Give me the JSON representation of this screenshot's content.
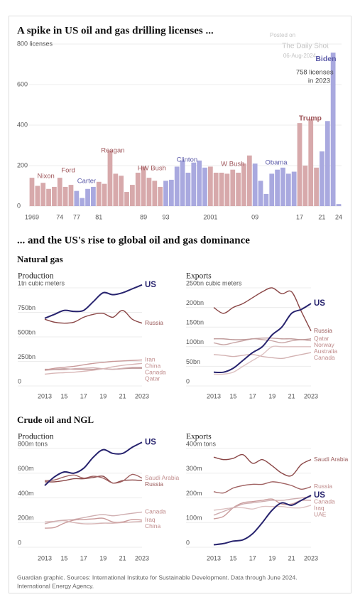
{
  "chart_data": [
    {
      "type": "bar",
      "title": "A spike in US oil and gas drilling licenses ...",
      "watermark": [
        "Posted on",
        "The Daily Shot",
        "06-Aug-2024"
      ],
      "x": [
        1969,
        1970,
        1971,
        1972,
        1973,
        1974,
        1975,
        1976,
        1977,
        1978,
        1979,
        1980,
        1981,
        1982,
        1983,
        1984,
        1985,
        1986,
        1987,
        1988,
        1989,
        1990,
        1991,
        1992,
        1993,
        1994,
        1995,
        1996,
        1997,
        1998,
        1999,
        2000,
        2001,
        2002,
        2003,
        2004,
        2005,
        2006,
        2007,
        2008,
        2009,
        2010,
        2011,
        2012,
        2013,
        2014,
        2015,
        2016,
        2017,
        2018,
        2019,
        2020,
        2021,
        2022,
        2023,
        2024
      ],
      "values": [
        140,
        100,
        115,
        85,
        95,
        140,
        95,
        105,
        75,
        40,
        85,
        95,
        120,
        110,
        275,
        160,
        150,
        70,
        105,
        165,
        195,
        140,
        125,
        95,
        125,
        130,
        195,
        225,
        165,
        215,
        225,
        190,
        195,
        165,
        165,
        160,
        180,
        165,
        210,
        250,
        210,
        125,
        60,
        160,
        180,
        190,
        160,
        170,
        410,
        200,
        430,
        190,
        270,
        420,
        758,
        10
      ],
      "colors": [
        "#d7a9ab",
        "#d7a9ab",
        "#d7a9ab",
        "#d7a9ab",
        "#d7a9ab",
        "#d7a9ab",
        "#d7a9ab",
        "#d7a9ab",
        "#a9a9df",
        "#a9a9df",
        "#a9a9df",
        "#a9a9df",
        "#d7a9ab",
        "#d7a9ab",
        "#d7a9ab",
        "#d7a9ab",
        "#d7a9ab",
        "#d7a9ab",
        "#d7a9ab",
        "#d7a9ab",
        "#d7a9ab",
        "#d7a9ab",
        "#d7a9ab",
        "#d7a9ab",
        "#a9a9df",
        "#a9a9df",
        "#a9a9df",
        "#a9a9df",
        "#a9a9df",
        "#a9a9df",
        "#a9a9df",
        "#a9a9df",
        "#d7a9ab",
        "#d7a9ab",
        "#d7a9ab",
        "#d7a9ab",
        "#d7a9ab",
        "#d7a9ab",
        "#d7a9ab",
        "#d7a9ab",
        "#a9a9df",
        "#a9a9df",
        "#a9a9df",
        "#a9a9df",
        "#a9a9df",
        "#a9a9df",
        "#a9a9df",
        "#a9a9df",
        "#d7a9ab",
        "#d7a9ab",
        "#d7a9ab",
        "#d7a9ab",
        "#a9a9df",
        "#a9a9df",
        "#a9a9df",
        "#a9a9df"
      ],
      "xlim": [
        1969,
        2024
      ],
      "xticks": [
        1969,
        {
          "value": 1974,
          "label": "74"
        },
        {
          "value": 1977,
          "label": "77"
        },
        {
          "value": 1981,
          "label": "81"
        },
        {
          "value": 1989,
          "label": "89"
        },
        {
          "value": 1993,
          "label": "93"
        },
        2001,
        {
          "value": 2009,
          "label": "09"
        },
        {
          "value": 2017,
          "label": "17"
        },
        {
          "value": 2021,
          "label": "21"
        },
        {
          "value": 2024,
          "label": "24"
        }
      ],
      "ylim": [
        0,
        800
      ],
      "yticks": [
        0,
        200,
        400,
        600,
        {
          "value": 800,
          "label": "800 licenses"
        }
      ],
      "grid": true,
      "annotations": [
        {
          "text": "Nixon",
          "x": 1971.5,
          "y": 147,
          "color": "#a0585c"
        },
        {
          "text": "Ford",
          "x": 1975.5,
          "y": 175,
          "color": "#a0585c"
        },
        {
          "text": "Carter",
          "x": 1978.8,
          "y": 122,
          "color": "#5b5aa8"
        },
        {
          "text": "Reagan",
          "x": 1983.5,
          "y": 274,
          "color": "#a0585c"
        },
        {
          "text": "HW Bush",
          "x": 1990.5,
          "y": 186,
          "color": "#a0585c"
        },
        {
          "text": "Clinton",
          "x": 1996.8,
          "y": 228,
          "color": "#5b5aa8"
        },
        {
          "text": "W Bush",
          "x": 2005,
          "y": 207,
          "color": "#a0585c"
        },
        {
          "text": "Obama",
          "x": 2012.8,
          "y": 214,
          "color": "#5b5aa8"
        },
        {
          "text": "Trump",
          "x": 2018.9,
          "y": 432,
          "color": "#a0585c",
          "bold": true
        },
        {
          "text": "Biden",
          "x": 2021.7,
          "y": 725,
          "color": "#5b5aa8",
          "bold": true
        },
        {
          "text": "758 licenses",
          "x": 2019.7,
          "y": 660,
          "color": "#444"
        },
        {
          "text": "in 2023",
          "x": 2020.5,
          "y": 618,
          "color": "#444"
        }
      ]
    },
    {
      "type": "line",
      "title": "Production",
      "x": [
        2013,
        2014,
        2015,
        2016,
        2017,
        2018,
        2019,
        2020,
        2021,
        2022,
        2023
      ],
      "xlim": [
        2013,
        2023
      ],
      "xticks": [
        2013,
        {
          "value": 2015,
          "label": "15"
        },
        {
          "value": 2017,
          "label": "17"
        },
        {
          "value": 2019,
          "label": "19"
        },
        {
          "value": 2021,
          "label": "21"
        },
        2023
      ],
      "ylim": [
        0,
        1000
      ],
      "yticks": [
        0,
        {
          "value": 250,
          "label": "250bn"
        },
        {
          "value": 500,
          "label": "500bn"
        },
        {
          "value": 750,
          "label": "750bn"
        },
        {
          "value": 1000,
          "label": "1tn cubic meters"
        }
      ],
      "grid": true,
      "series": [
        {
          "name": "US",
          "color": "#27236e",
          "values": [
            690,
            730,
            770,
            760,
            770,
            860,
            950,
            930,
            950,
            990,
            1030
          ]
        },
        {
          "name": "Russia",
          "color": "#8a4646",
          "values": [
            680,
            650,
            640,
            650,
            700,
            730,
            740,
            700,
            770,
            680,
            640
          ]
        },
        {
          "name": "Iran",
          "color": "#c99a9a",
          "values": [
            160,
            180,
            190,
            200,
            215,
            230,
            240,
            250,
            255,
            260,
            265
          ]
        },
        {
          "name": "China",
          "color": "#d8b6b6",
          "values": [
            120,
            130,
            135,
            140,
            150,
            160,
            175,
            195,
            210,
            220,
            230
          ]
        },
        {
          "name": "Canada",
          "color": "#cfaeb0",
          "values": [
            160,
            165,
            165,
            175,
            180,
            185,
            175,
            170,
            180,
            190,
            190
          ]
        },
        {
          "name": "Qatar",
          "color": "#bf9a9a",
          "values": [
            170,
            170,
            175,
            170,
            170,
            170,
            175,
            170,
            175,
            180,
            180
          ]
        }
      ]
    },
    {
      "type": "line",
      "title": "Exports",
      "x": [
        2013,
        2014,
        2015,
        2016,
        2017,
        2018,
        2019,
        2020,
        2021,
        2022,
        2023
      ],
      "xlim": [
        2013,
        2023
      ],
      "xticks": [
        2013,
        {
          "value": 2015,
          "label": "15"
        },
        {
          "value": 2017,
          "label": "17"
        },
        {
          "value": 2019,
          "label": "19"
        },
        {
          "value": 2021,
          "label": "21"
        },
        2023
      ],
      "ylim": [
        0,
        250
      ],
      "yticks": [
        0,
        {
          "value": 50,
          "label": "50bn"
        },
        {
          "value": 100,
          "label": "100bn"
        },
        {
          "value": 150,
          "label": "150bn"
        },
        {
          "value": 200,
          "label": "200bn"
        },
        {
          "value": 250,
          "label": "250bn cubic meters"
        }
      ],
      "grid": true,
      "series": [
        {
          "name": "US",
          "color": "#27236e",
          "values": [
            35,
            35,
            45,
            65,
            85,
            100,
            130,
            150,
            185,
            195,
            210
          ]
        },
        {
          "name": "Russia",
          "color": "#8a4646",
          "values": [
            200,
            185,
            200,
            210,
            225,
            240,
            250,
            235,
            240,
            190,
            140
          ]
        },
        {
          "name": "Qatar",
          "color": "#bf9a9a",
          "values": [
            120,
            120,
            118,
            118,
            120,
            122,
            122,
            120,
            120,
            118,
            120
          ]
        },
        {
          "name": "Norway",
          "color": "#c9a7a7",
          "values": [
            110,
            105,
            110,
            115,
            120,
            118,
            115,
            110,
            115,
            118,
            115
          ]
        },
        {
          "name": "Australia",
          "color": "#ddc2c2",
          "values": [
            30,
            30,
            35,
            50,
            65,
            80,
            100,
            100,
            100,
            100,
            100
          ]
        },
        {
          "name": "Canada",
          "color": "#d3b2b2",
          "values": [
            80,
            78,
            75,
            78,
            80,
            75,
            72,
            70,
            75,
            80,
            85
          ]
        }
      ]
    },
    {
      "type": "line",
      "title": "Production",
      "x": [
        2013,
        2014,
        2015,
        2016,
        2017,
        2018,
        2019,
        2020,
        2021,
        2022,
        2023
      ],
      "xlim": [
        2013,
        2023
      ],
      "xticks": [
        2013,
        {
          "value": 2015,
          "label": "15"
        },
        {
          "value": 2017,
          "label": "17"
        },
        {
          "value": 2019,
          "label": "19"
        },
        {
          "value": 2021,
          "label": "21"
        },
        2023
      ],
      "ylim": [
        0,
        800
      ],
      "yticks": [
        0,
        {
          "value": 200,
          "label": "200m"
        },
        {
          "value": 400,
          "label": "400m"
        },
        {
          "value": 600,
          "label": "600m"
        },
        {
          "value": 800,
          "label": "800m tons"
        }
      ],
      "grid": true,
      "series": [
        {
          "name": "US",
          "color": "#27236e",
          "values": [
            500,
            570,
            610,
            600,
            640,
            730,
            790,
            760,
            760,
            810,
            850
          ]
        },
        {
          "name": "Saudi Arabia",
          "color": "#a06262",
          "values": [
            540,
            545,
            570,
            585,
            560,
            575,
            560,
            520,
            535,
            590,
            560
          ]
        },
        {
          "name": "Russia",
          "color": "#8a4646",
          "values": [
            530,
            530,
            540,
            555,
            555,
            565,
            575,
            520,
            540,
            545,
            540
          ]
        },
        {
          "name": "Canada",
          "color": "#cfaeb0",
          "values": [
            190,
            210,
            220,
            225,
            240,
            255,
            265,
            255,
            265,
            275,
            285
          ]
        },
        {
          "name": "China",
          "color": "#d8b6b6",
          "values": [
            205,
            210,
            215,
            200,
            190,
            190,
            195,
            195,
            200,
            205,
            210
          ]
        },
        {
          "name": "Iraq",
          "color": "#c99a9a",
          "values": [
            155,
            160,
            195,
            220,
            225,
            230,
            235,
            205,
            205,
            225,
            220
          ]
        }
      ]
    },
    {
      "type": "line",
      "title": "Exports",
      "x": [
        2013,
        2014,
        2015,
        2016,
        2017,
        2018,
        2019,
        2020,
        2021,
        2022,
        2023
      ],
      "xlim": [
        2013,
        2023
      ],
      "xticks": [
        2013,
        {
          "value": 2015,
          "label": "15"
        },
        {
          "value": 2017,
          "label": "17"
        },
        {
          "value": 2019,
          "label": "19"
        },
        {
          "value": 2021,
          "label": "21"
        },
        2023
      ],
      "ylim": [
        0,
        400
      ],
      "yticks": [
        0,
        {
          "value": 100,
          "label": "100m"
        },
        {
          "value": 200,
          "label": "200m"
        },
        {
          "value": 300,
          "label": "300m"
        },
        {
          "value": 400,
          "label": "400m tons"
        }
      ],
      "grid": true,
      "series": [
        {
          "name": "Saudi Arabia",
          "color": "#8a4646",
          "values": [
            365,
            355,
            360,
            375,
            340,
            355,
            330,
            300,
            290,
            335,
            355
          ]
        },
        {
          "name": "Russia",
          "color": "#a06262",
          "values": [
            225,
            220,
            240,
            250,
            255,
            255,
            265,
            260,
            250,
            235,
            245
          ]
        },
        {
          "name": "US",
          "color": "#27236e",
          "values": [
            10,
            15,
            25,
            30,
            55,
            100,
            150,
            180,
            170,
            190,
            210
          ]
        },
        {
          "name": "Canada",
          "color": "#cfaeb0",
          "values": [
            130,
            145,
            160,
            175,
            180,
            185,
            190,
            190,
            195,
            200,
            205
          ]
        },
        {
          "name": "Iraq",
          "color": "#c99a9a",
          "values": [
            115,
            125,
            160,
            180,
            185,
            190,
            195,
            175,
            175,
            190,
            190
          ]
        },
        {
          "name": "UAE",
          "color": "#ddc2c2",
          "values": [
            150,
            155,
            160,
            160,
            155,
            165,
            165,
            165,
            160,
            160,
            170
          ]
        }
      ]
    }
  ],
  "section_title": "... and the US's rise to global oil and gas dominance",
  "groups": [
    "Natural gas",
    "Crude oil and NGL"
  ],
  "source": [
    "Guardian graphic. Sources: International Institute for Sustainable Development. Data through June 2024.",
    "International Energy Agency."
  ]
}
